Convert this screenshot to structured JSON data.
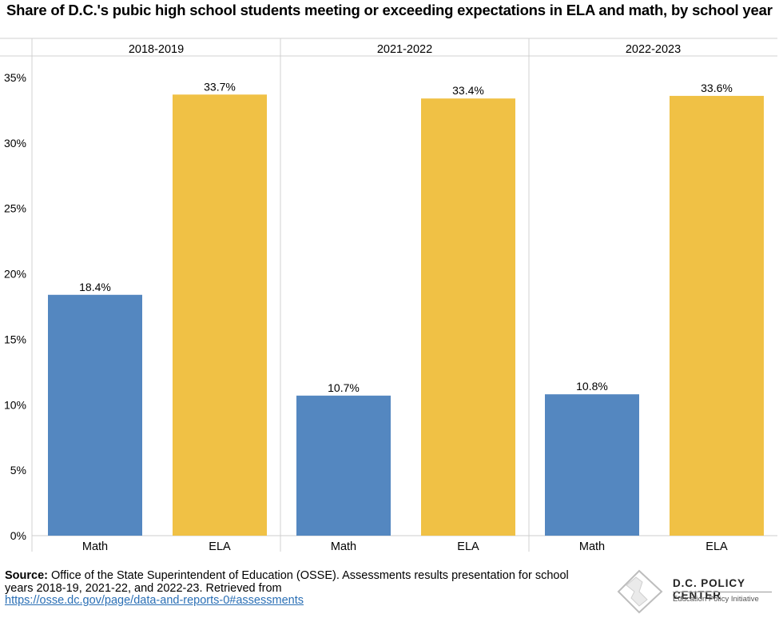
{
  "title": "Share of D.C.'s pubic high school students meeting or exceeding expectations in ELA and math, by school year",
  "chart_data": {
    "type": "bar",
    "facets": [
      "2018-2019",
      "2021-2022",
      "2022-2023"
    ],
    "categories": [
      "Math",
      "ELA"
    ],
    "values": [
      [
        18.4,
        33.7
      ],
      [
        10.7,
        33.4
      ],
      [
        10.8,
        33.6
      ]
    ],
    "value_labels": [
      [
        "18.4%",
        "33.7%"
      ],
      [
        "10.7%",
        "33.4%"
      ],
      [
        "10.8%",
        "33.6%"
      ]
    ],
    "colors": [
      "#5487c0",
      "#f0c145"
    ],
    "ylim": [
      0,
      35
    ],
    "yticks": [
      "0%",
      "5%",
      "10%",
      "15%",
      "20%",
      "25%",
      "30%",
      "35%"
    ],
    "xlabel": "",
    "ylabel": "",
    "grid": false
  },
  "footer": {
    "source_label": "Source:",
    "source_text": " Office of the State Superintendent of Education (OSSE). Assessments results presentation for school years 2018-19, 2021-22, and 2022-23. Retrieved from",
    "link_text": "https://osse.dc.gov/page/data-and-reports-0#assessments"
  },
  "logo": {
    "name": "D.C. POLICY CENTER",
    "subtitle": "Education Policy Initiative"
  }
}
